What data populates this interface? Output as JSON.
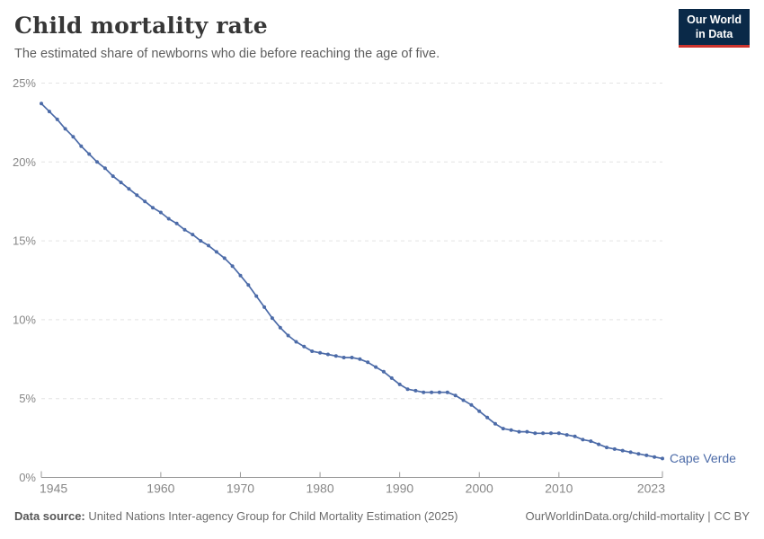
{
  "header": {
    "title": "Child mortality rate",
    "subtitle": "The estimated share of newborns who die before reaching the age of five.",
    "logo": {
      "line1": "Our World",
      "line2": "in Data",
      "bg_color": "#0a2948",
      "accent_color": "#cc332d"
    }
  },
  "chart_data": {
    "type": "line",
    "title": "Child mortality rate",
    "entity": "Cape Verde",
    "unit": "%",
    "line_color": "#4c6ba8",
    "grid_color": "#e3e3e3",
    "axis_color": "#9a9a9a",
    "tick_label_color": "#878787",
    "grid": "horizontal-dashed",
    "legend_position": "end-of-line-label",
    "ylim": [
      0,
      25
    ],
    "yticks": [
      0,
      5,
      10,
      15,
      20,
      25
    ],
    "ytick_labels": [
      "0%",
      "5%",
      "10%",
      "15%",
      "20%",
      "25%"
    ],
    "xticks": [
      1945,
      1960,
      1970,
      1980,
      1990,
      2000,
      2010,
      2023
    ],
    "x": [
      1945,
      1946,
      1947,
      1948,
      1949,
      1950,
      1951,
      1952,
      1953,
      1954,
      1955,
      1956,
      1957,
      1958,
      1959,
      1960,
      1961,
      1962,
      1963,
      1964,
      1965,
      1966,
      1967,
      1968,
      1969,
      1970,
      1971,
      1972,
      1973,
      1974,
      1975,
      1976,
      1977,
      1978,
      1979,
      1980,
      1981,
      1982,
      1983,
      1984,
      1985,
      1986,
      1987,
      1988,
      1989,
      1990,
      1991,
      1992,
      1993,
      1994,
      1995,
      1996,
      1997,
      1998,
      1999,
      2000,
      2001,
      2002,
      2003,
      2004,
      2005,
      2006,
      2007,
      2008,
      2009,
      2010,
      2011,
      2012,
      2013,
      2014,
      2015,
      2016,
      2017,
      2018,
      2019,
      2020,
      2021,
      2022,
      2023
    ],
    "values": [
      23.7,
      23.2,
      22.7,
      22.1,
      21.6,
      21.0,
      20.5,
      20.0,
      19.6,
      19.1,
      18.7,
      18.3,
      17.9,
      17.5,
      17.1,
      16.8,
      16.4,
      16.1,
      15.7,
      15.4,
      15.0,
      14.7,
      14.3,
      13.9,
      13.4,
      12.8,
      12.2,
      11.5,
      10.8,
      10.1,
      9.5,
      9.0,
      8.6,
      8.3,
      8.0,
      7.9,
      7.8,
      7.7,
      7.6,
      7.6,
      7.5,
      7.3,
      7.0,
      6.7,
      6.3,
      5.9,
      5.6,
      5.5,
      5.4,
      5.4,
      5.4,
      5.4,
      5.2,
      4.9,
      4.6,
      4.2,
      3.8,
      3.4,
      3.1,
      3.0,
      2.9,
      2.9,
      2.8,
      2.8,
      2.8,
      2.8,
      2.7,
      2.6,
      2.4,
      2.3,
      2.1,
      1.9,
      1.8,
      1.7,
      1.6,
      1.5,
      1.4,
      1.3,
      1.2
    ]
  },
  "footer": {
    "datasource_label": "Data source:",
    "datasource_text": "United Nations Inter-agency Group for Child Mortality Estimation (2025)",
    "attribution": "OurWorldinData.org/child-mortality | CC BY"
  }
}
